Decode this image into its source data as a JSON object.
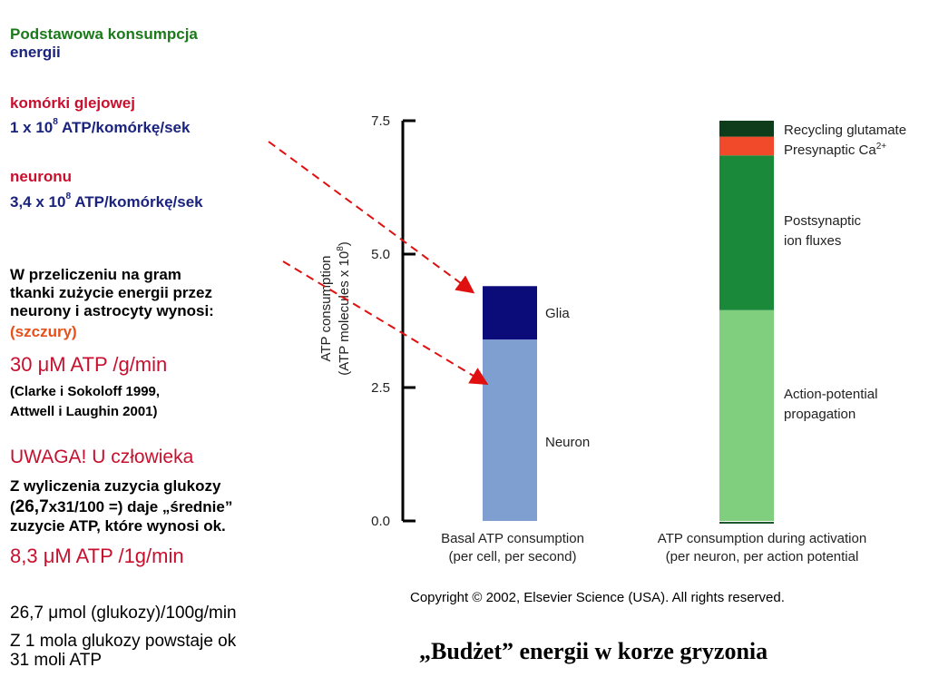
{
  "left": {
    "heading1": "Podstawowa konsumpcja",
    "heading2": "energii",
    "glia_label": "komórki glejowej",
    "glia_value_pre": "1 x 10",
    "glia_value_exp": "8",
    "glia_value_post": " ATP/komórkę/sek",
    "neuron_label": "neuronu",
    "neuron_value_pre": "3,4 x 10",
    "neuron_value_exp": "8",
    "neuron_value_post": " ATP/komórkę/sek",
    "para1_l1": "W przeliczeniu na gram",
    "para1_l2": "tkanki zużycie energii przez",
    "para1_l3": "neurony i astrocyty wynosi:",
    "para1_l4": "(szczury)",
    "rate1": "30 μM ATP /g/min",
    "ref1": "(Clarke i Sokoloff 1999,",
    "ref2": "Attwell i Laughin 2001)",
    "warning": "UWAGA! U człowieka",
    "calc_l1": "Z wyliczenia zuzycia glukozy",
    "calc_l2_a": "(",
    "calc_l2_b": "26,7",
    "calc_l2_c": "x31/100 =) daje „średnie”",
    "calc_l3": "zuzycie ATP, które wynosi ok.",
    "rate2": "8,3 μM ATP /1g/min",
    "glucose": "26,7 μmol (glukozy)/100g/min",
    "mole1": "Z 1 mola glukozy powstaje ok",
    "mole2": "31 moli ATP"
  },
  "caption": "„Budżet” energii w korze gryzonia",
  "copyright": "Copyright © 2002, Elsevier Science (USA). All rights reserved.",
  "chart_data": {
    "type": "bar",
    "stacked": true,
    "ylabel_line1": "ATP consumption",
    "ylabel_line2": "(ATP molecules x 10",
    "ylabel_exp": "8",
    "ylabel_close": ")",
    "ylim": [
      0,
      7.5
    ],
    "yticks": [
      "0.0",
      "2.5",
      "5.0",
      "7.5"
    ],
    "ytick_values": [
      0,
      2.5,
      5.0,
      7.5
    ],
    "bars": [
      {
        "label_l1": "Basal ATP consumption",
        "label_l2": "(per cell, per second)",
        "segments": [
          {
            "name": "Neuron",
            "value": 3.4,
            "color": "#7f9fd1"
          },
          {
            "name": "Glia",
            "value": 1.0,
            "color": "#0b0b7a"
          }
        ]
      },
      {
        "label_l1": "ATP consumption during activation",
        "label_l2": "(per neuron, per action potential",
        "segments": [
          {
            "name": "Action-potential propagation",
            "value": 3.95,
            "color": "#7fcf7f"
          },
          {
            "name": "Postsynaptic ion fluxes",
            "value": 2.9,
            "color": "#1a8a3a"
          },
          {
            "name": "Presynaptic Ca2+",
            "value": 0.35,
            "color": "#f04a2a"
          },
          {
            "name": "Recycling glutamate",
            "value": 0.3,
            "color": "#0d3d1a"
          }
        ]
      }
    ],
    "segment_labels": {
      "neuron": "Neuron",
      "glia": "Glia",
      "ap_l1": "Action-potential",
      "ap_l2": "propagation",
      "post_l1": "Postsynaptic",
      "post_l2": "ion fluxes",
      "pre": "Presynaptic Ca",
      "pre_sup": "2+",
      "recycle": "Recycling glutamate"
    },
    "arrow_color": "#e01010"
  }
}
